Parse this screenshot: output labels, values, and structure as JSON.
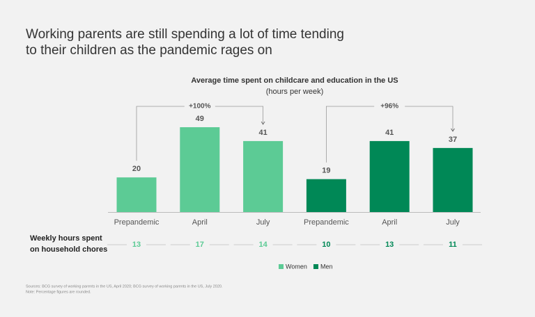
{
  "chart_data": {
    "type": "bar",
    "title": [
      "Working parents are still spending a lot of time tending",
      "to their children as the pandemic rages on"
    ],
    "subtitle": [
      "Average time spent on childcare and education in the US",
      "(hours per week)"
    ],
    "categories": [
      "Prepandemic",
      "April",
      "July"
    ],
    "series": [
      {
        "name": "Women",
        "color": "#5ccb95",
        "values": [
          20,
          49,
          41
        ],
        "change_label": "+100%",
        "chores": [
          13,
          17,
          14
        ]
      },
      {
        "name": "Men",
        "color": "#008856",
        "values": [
          19,
          41,
          37
        ],
        "change_label": "+96%",
        "chores": [
          10,
          13,
          11
        ]
      }
    ],
    "chores_label": [
      "Weekly hours spent",
      "on household chores"
    ],
    "notes": [
      "Sources: BCG survey of working parents in the US, April 2020; BCG survey of working parents in the US, July 2020.",
      "Note: Percentage figures are rounded."
    ]
  }
}
